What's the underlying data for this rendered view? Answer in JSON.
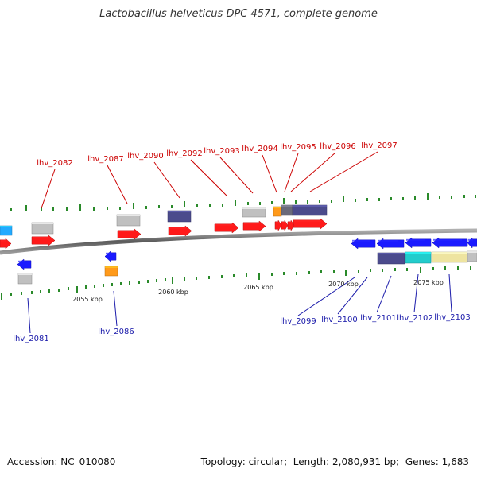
{
  "title": "Lactobacillus helveticus DPC 4571, complete genome",
  "footer": {
    "accession_label": "Accession:",
    "accession": "NC_010080",
    "topology_label": "Topology:",
    "topology": "circular",
    "length_label": "Length:",
    "length": "2,080,931 bp",
    "genes_label": "Genes:",
    "genes": "1,683"
  },
  "colors": {
    "forward_gene": "#ff1a1a",
    "reverse_gene": "#1a1aff",
    "forward_label": "#cc0000",
    "reverse_label": "#1a1aaa",
    "backbone": "#808080",
    "tick": "#2a8a2a",
    "orange": "#ff9a1a",
    "grey": "#c0c0c0",
    "purple": "#4b4b8c",
    "cyan": "#22cccc",
    "khaki": "#eee4a0",
    "sky": "#22aaff"
  },
  "scale_labels": [
    "2055 kbp",
    "2060 kbp",
    "2065 kbp",
    "2070 kbp",
    "2075 kbp"
  ],
  "forward_labels": [
    "lhv_2082",
    "lhv_2087",
    "lhv_2090",
    "lhv_2092",
    "lhv_2093",
    "lhv_2094",
    "lhv_2095",
    "lhv_2096",
    "lhv_2097"
  ],
  "reverse_labels": [
    "lhv_2081",
    "lhv_2086",
    "lhv_2099",
    "lhv_2100",
    "lhv_2101",
    "lhv_2102",
    "lhv_2103"
  ]
}
